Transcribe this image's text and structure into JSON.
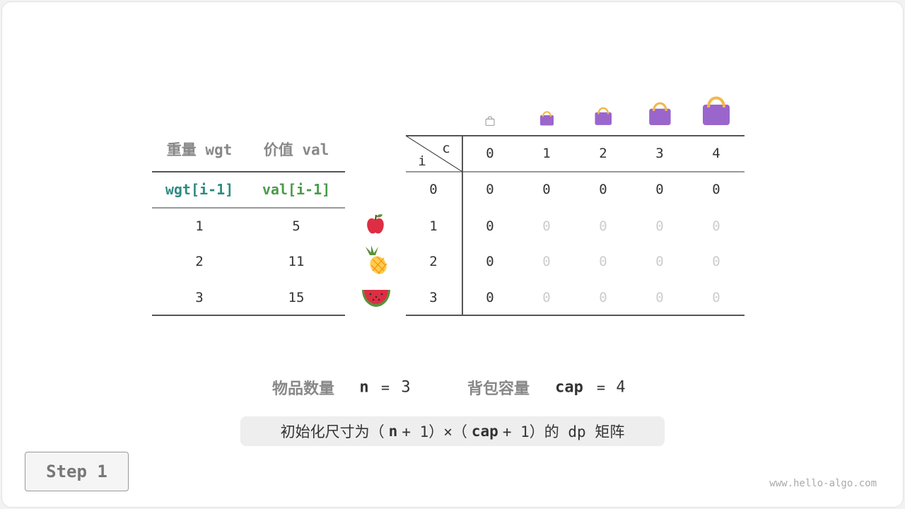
{
  "items_table": {
    "headers": [
      "重量 wgt",
      "价值 val"
    ],
    "subheaders": [
      "wgt[i-1]",
      "val[i-1]"
    ],
    "rows": [
      {
        "wgt": "1",
        "val": "5",
        "fruit": "apple-icon"
      },
      {
        "wgt": "2",
        "val": "11",
        "fruit": "pineapple-icon"
      },
      {
        "wgt": "3",
        "val": "15",
        "fruit": "watermelon-icon"
      }
    ]
  },
  "dp_table": {
    "corner_i": "i",
    "corner_c": "c",
    "cols": [
      "0",
      "1",
      "2",
      "3",
      "4"
    ],
    "row_labels": [
      "0",
      "1",
      "2",
      "3"
    ],
    "cells": [
      [
        "0",
        "0",
        "0",
        "0",
        "0"
      ],
      [
        "0",
        "0",
        "0",
        "0",
        "0"
      ],
      [
        "0",
        "0",
        "0",
        "0",
        "0"
      ],
      [
        "0",
        "0",
        "0",
        "0",
        "0"
      ]
    ],
    "filled": [
      [
        true,
        true,
        true,
        true,
        true
      ],
      [
        true,
        false,
        false,
        false,
        false
      ],
      [
        true,
        false,
        false,
        false,
        false
      ],
      [
        true,
        false,
        false,
        false,
        false
      ]
    ],
    "bag_icons": [
      "bag-empty-icon",
      "bag-icon",
      "bag-icon",
      "bag-icon",
      "bag-icon"
    ]
  },
  "summary": {
    "n_label": "物品数量",
    "n_var": "n",
    "n_eq": "=",
    "n_val": "3",
    "cap_label": "背包容量",
    "cap_var": "cap",
    "cap_eq": "=",
    "cap_val": "4"
  },
  "note": {
    "t1": "初始化尺寸为（",
    "n": "n",
    "t2": "+ 1）×（",
    "cap": "cap",
    "t3": "+ 1）的 dp 矩阵"
  },
  "step": "Step 1",
  "watermark": "www.hello-algo.com",
  "colors": {
    "wgt": "#2e8b84",
    "val": "#4a9a4a",
    "bag": "#9a66cc",
    "handle": "#f2b84b"
  }
}
